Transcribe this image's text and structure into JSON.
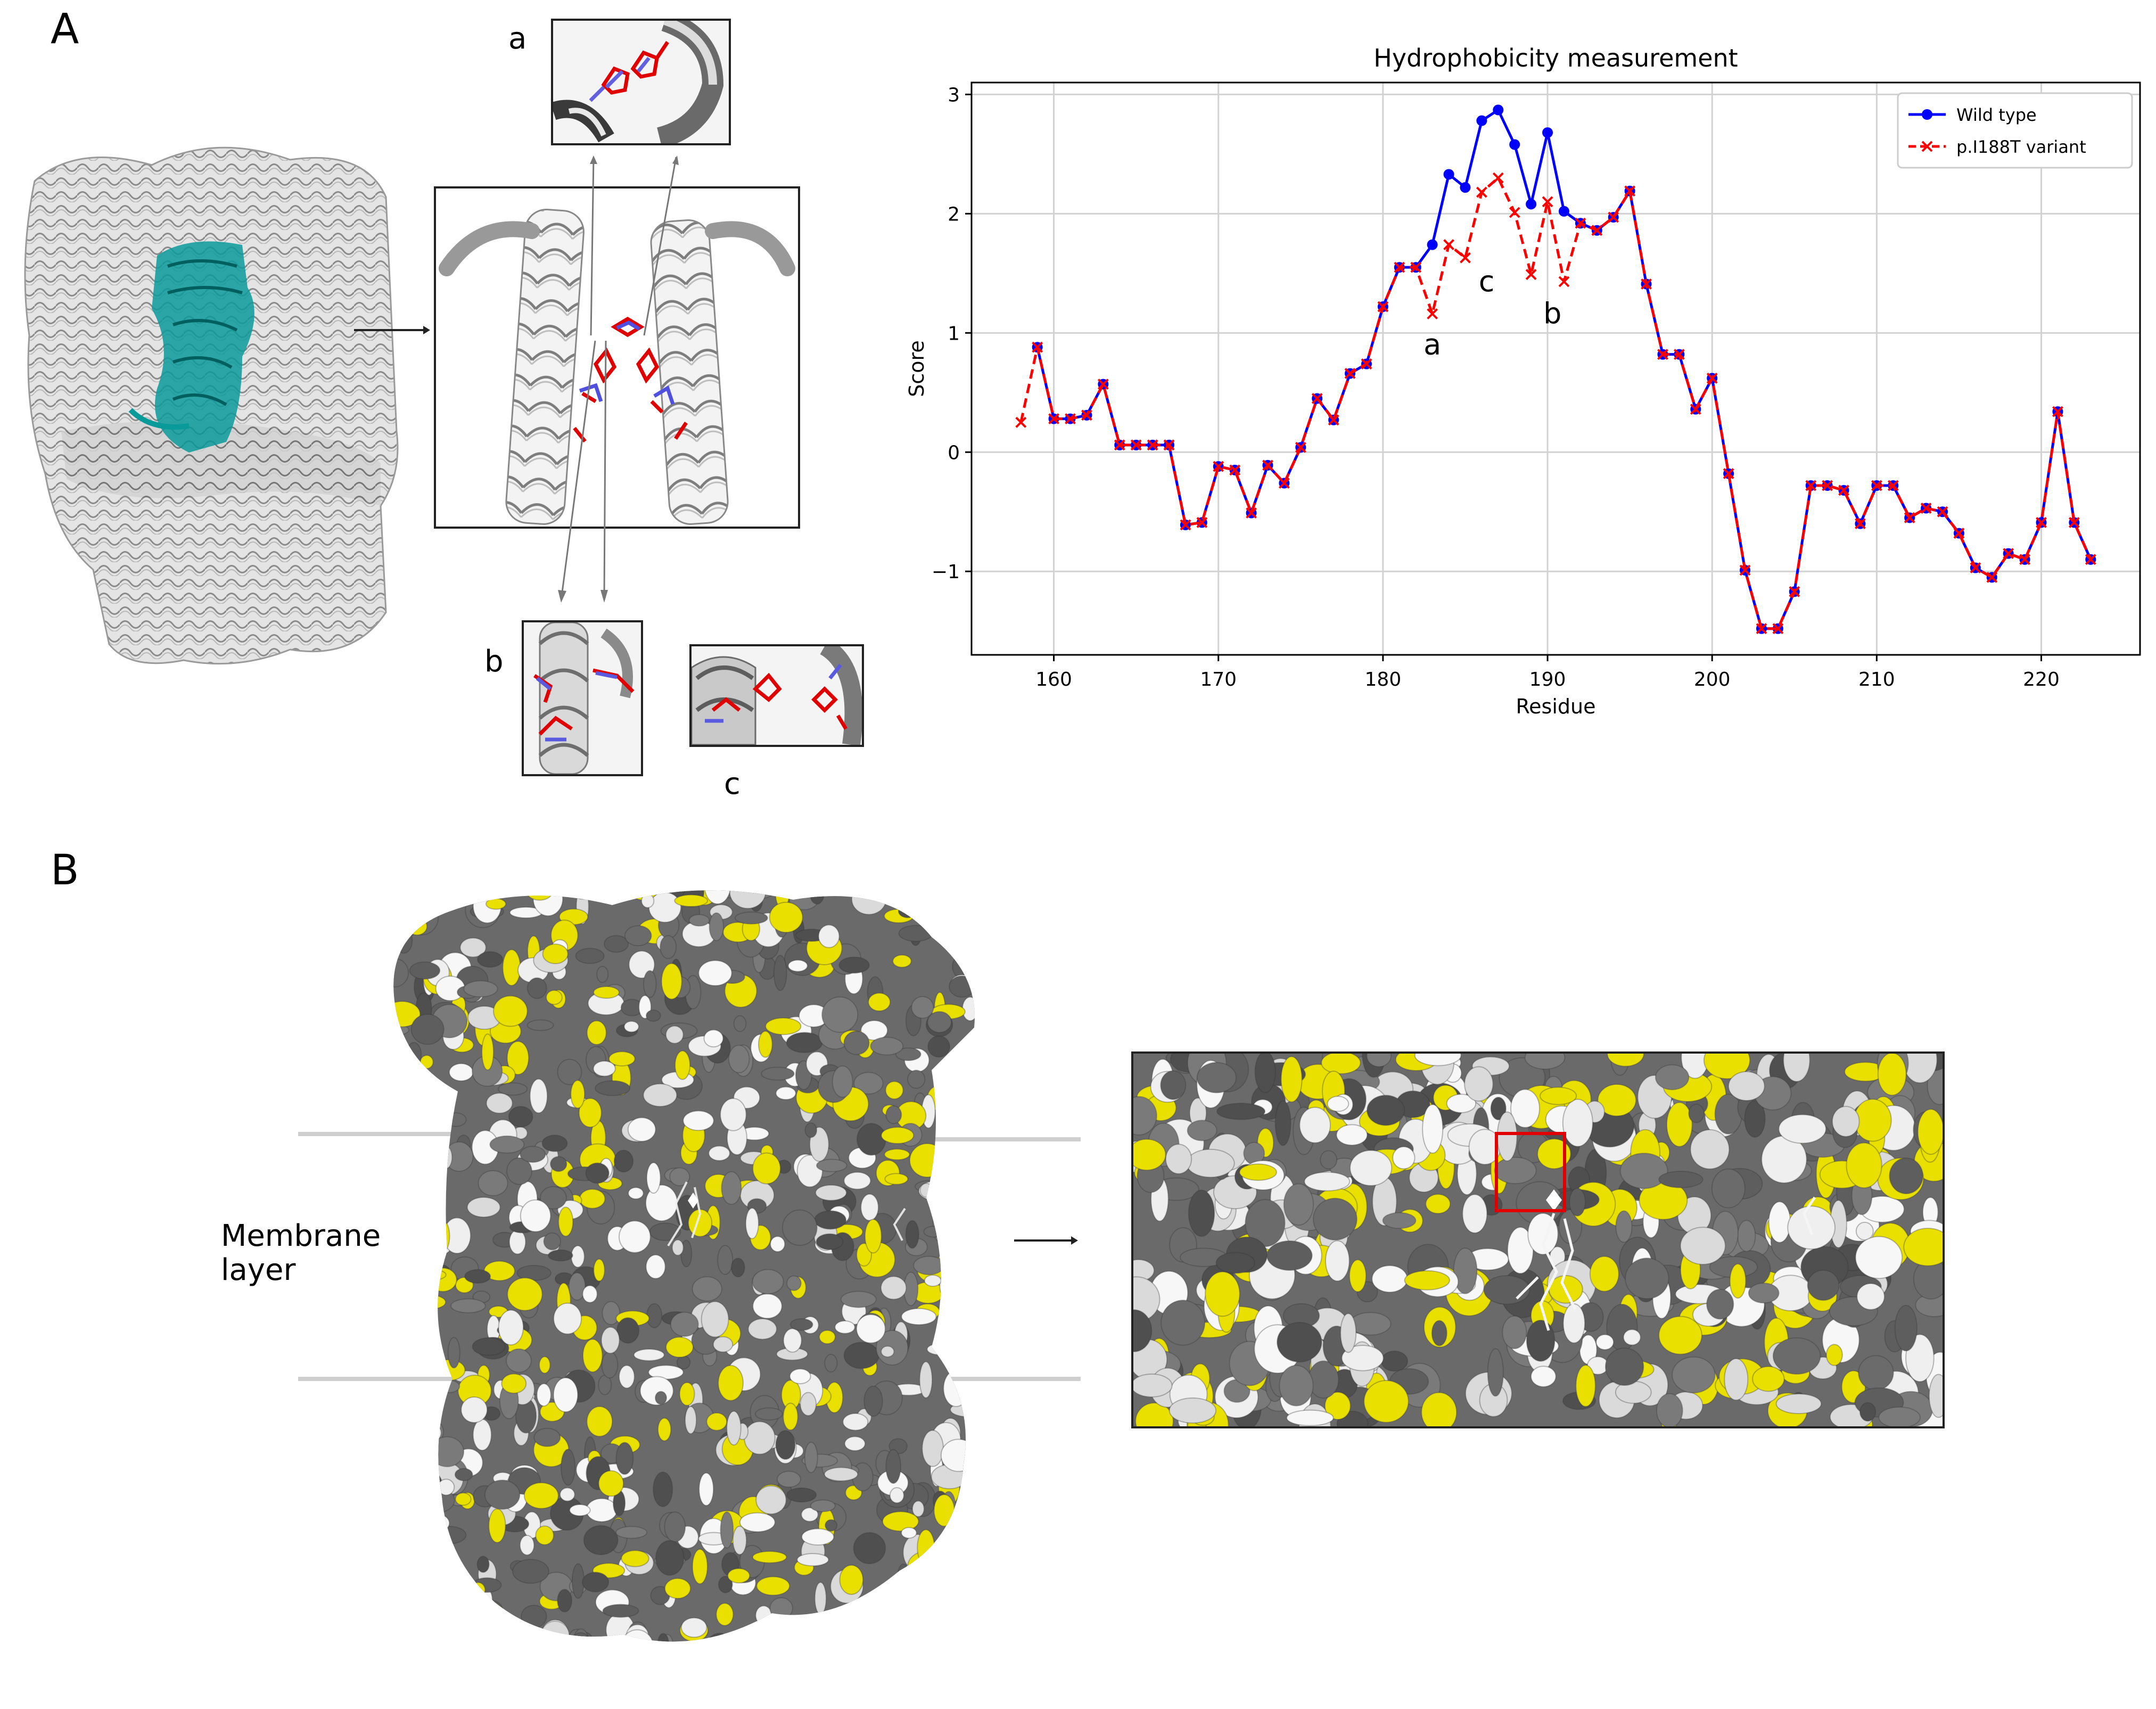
{
  "panels": {
    "a_label": "A",
    "b_label": "B"
  },
  "insets": {
    "a": "a",
    "b": "b",
    "c": "c"
  },
  "membrane_label": [
    "Membrane",
    "layer"
  ],
  "colors": {
    "wild_type": "#0000ff",
    "variant": "#ff0000",
    "hydrophobic_surface": "#e9e000",
    "ribbon_highlight": "#008b8b",
    "highlight_box": "#e00000"
  },
  "chart_data": {
    "type": "line",
    "title": "Hydrophobicity measurement",
    "xlabel": "Residue",
    "ylabel": "Score",
    "xlim": [
      155,
      226
    ],
    "ylim": [
      -1.7,
      3.1
    ],
    "xticks": [
      160,
      170,
      180,
      190,
      200,
      210,
      220
    ],
    "yticks": [
      -1,
      0,
      1,
      2,
      3
    ],
    "grid": true,
    "legend_position": "top-right",
    "series": [
      {
        "name": "Wild type",
        "marker": "circle",
        "line": "solid",
        "x": [
          159,
          160,
          161,
          162,
          163,
          164,
          165,
          166,
          167,
          168,
          169,
          170,
          171,
          172,
          173,
          174,
          175,
          176,
          177,
          178,
          179,
          180,
          181,
          182,
          183,
          184,
          185,
          186,
          187,
          188,
          189,
          190,
          191,
          192,
          193,
          194,
          195,
          196,
          197,
          198,
          199,
          200,
          201,
          202,
          203,
          204,
          205,
          206,
          207,
          208,
          209,
          210,
          211,
          212,
          213,
          214,
          215,
          216,
          217,
          218,
          219,
          220,
          221,
          222,
          223
        ],
        "y": [
          0.88,
          0.28,
          0.28,
          0.31,
          0.57,
          0.06,
          0.06,
          0.06,
          0.06,
          -0.61,
          -0.59,
          -0.12,
          -0.15,
          -0.51,
          -0.11,
          -0.26,
          0.04,
          0.45,
          0.27,
          0.66,
          0.74,
          1.22,
          1.55,
          1.55,
          1.74,
          2.33,
          2.22,
          2.78,
          2.87,
          2.58,
          2.08,
          2.68,
          2.02,
          1.92,
          1.86,
          1.97,
          2.19,
          1.41,
          0.82,
          0.82,
          0.36,
          0.62,
          -0.18,
          -0.99,
          -1.48,
          -1.48,
          -1.17,
          -0.28,
          -0.28,
          -0.32,
          -0.6,
          -0.28,
          -0.28,
          -0.55,
          -0.47,
          -0.5,
          -0.68,
          -0.97,
          -1.05,
          -0.85,
          -0.9,
          -0.59,
          0.34,
          -0.59,
          -0.9
        ]
      },
      {
        "name": "p.I188T variant",
        "marker": "x",
        "line": "dashed",
        "x": [
          158,
          159,
          160,
          161,
          162,
          163,
          164,
          165,
          166,
          167,
          168,
          169,
          170,
          171,
          172,
          173,
          174,
          175,
          176,
          177,
          178,
          179,
          180,
          181,
          182,
          183,
          184,
          185,
          186,
          187,
          188,
          189,
          190,
          191,
          192,
          193,
          194,
          195,
          196,
          197,
          198,
          199,
          200,
          201,
          202,
          203,
          204,
          205,
          206,
          207,
          208,
          209,
          210,
          211,
          212,
          213,
          214,
          215,
          216,
          217,
          218,
          219,
          220,
          221,
          222,
          223
        ],
        "y": [
          0.25,
          0.88,
          0.28,
          0.28,
          0.31,
          0.57,
          0.06,
          0.06,
          0.06,
          0.06,
          -0.61,
          -0.59,
          -0.12,
          -0.15,
          -0.51,
          -0.11,
          -0.26,
          0.04,
          0.45,
          0.27,
          0.66,
          0.74,
          1.22,
          1.55,
          1.55,
          1.16,
          1.74,
          1.63,
          2.18,
          2.3,
          2.01,
          1.49,
          2.1,
          1.43,
          1.92,
          1.86,
          1.97,
          2.19,
          1.41,
          0.82,
          0.82,
          0.36,
          0.62,
          -0.18,
          -0.99,
          -1.48,
          -1.48,
          -1.17,
          -0.28,
          -0.28,
          -0.32,
          -0.6,
          -0.28,
          -0.28,
          -0.55,
          -0.47,
          -0.5,
          -0.68,
          -0.97,
          -1.05,
          -0.85,
          -0.9,
          -0.59,
          0.34,
          -0.59,
          -0.9
        ]
      }
    ],
    "annotations": [
      {
        "text": "a",
        "x": 183,
        "y": 0.82
      },
      {
        "text": "c",
        "x": 186.3,
        "y": 1.35
      },
      {
        "text": "b",
        "x": 190.3,
        "y": 1.08
      }
    ]
  }
}
